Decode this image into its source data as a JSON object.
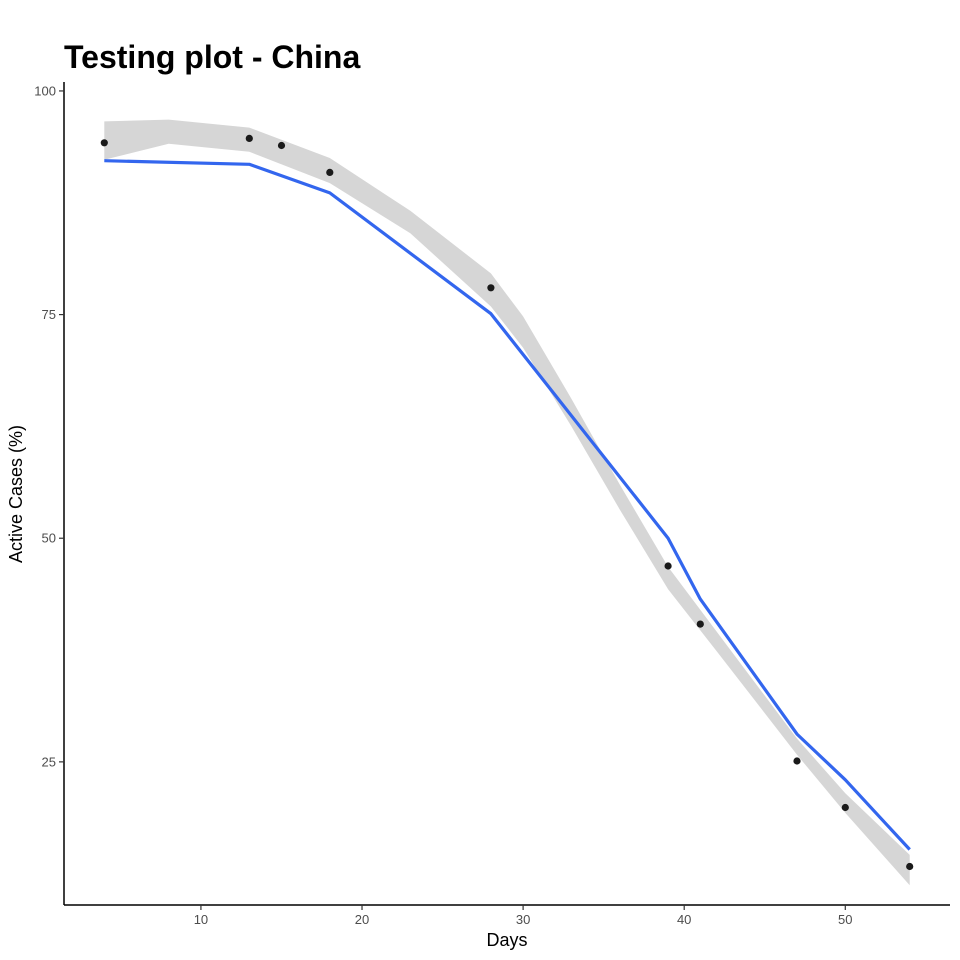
{
  "chart_data": {
    "type": "scatter",
    "title": "Testing plot - China",
    "xlabel": "Days",
    "ylabel": "Active Cases (%)",
    "xlim": [
      1.5,
      56.5
    ],
    "ylim": [
      9,
      101
    ],
    "x_ticks": [
      10,
      20,
      30,
      40,
      50
    ],
    "y_ticks": [
      25,
      50,
      75,
      100
    ],
    "grid": false,
    "legend": "none",
    "colors": {
      "points": "#1a1a1a",
      "fit_line": "#3366ee",
      "band": "#d6d6d6",
      "axis": "#000000"
    },
    "series": [
      {
        "kind": "points",
        "x": [
          4,
          13,
          15,
          18,
          28,
          39,
          41,
          47,
          50,
          54
        ],
        "y": [
          94.2,
          94.7,
          93.9,
          90.9,
          78.0,
          46.9,
          40.4,
          25.1,
          19.9,
          13.3
        ]
      },
      {
        "kind": "line",
        "x": [
          4,
          13,
          18,
          28,
          39,
          41,
          47,
          50,
          54
        ],
        "y": [
          92.2,
          91.8,
          88.6,
          75.1,
          50.0,
          43.2,
          28.1,
          23.0,
          15.2
        ]
      },
      {
        "kind": "band",
        "x": [
          4,
          8,
          13,
          18,
          23,
          28,
          30,
          33,
          36,
          39,
          42,
          47,
          50,
          54
        ],
        "lower": [
          92.3,
          94.1,
          93.2,
          89.7,
          84.1,
          75.9,
          71.3,
          62.5,
          53.2,
          44.3,
          37.4,
          25.8,
          19.3,
          11.2
        ],
        "upper": [
          96.6,
          96.8,
          95.9,
          92.5,
          86.6,
          79.6,
          74.8,
          65.6,
          56.0,
          46.8,
          39.6,
          27.6,
          21.5,
          14.6
        ]
      }
    ]
  }
}
